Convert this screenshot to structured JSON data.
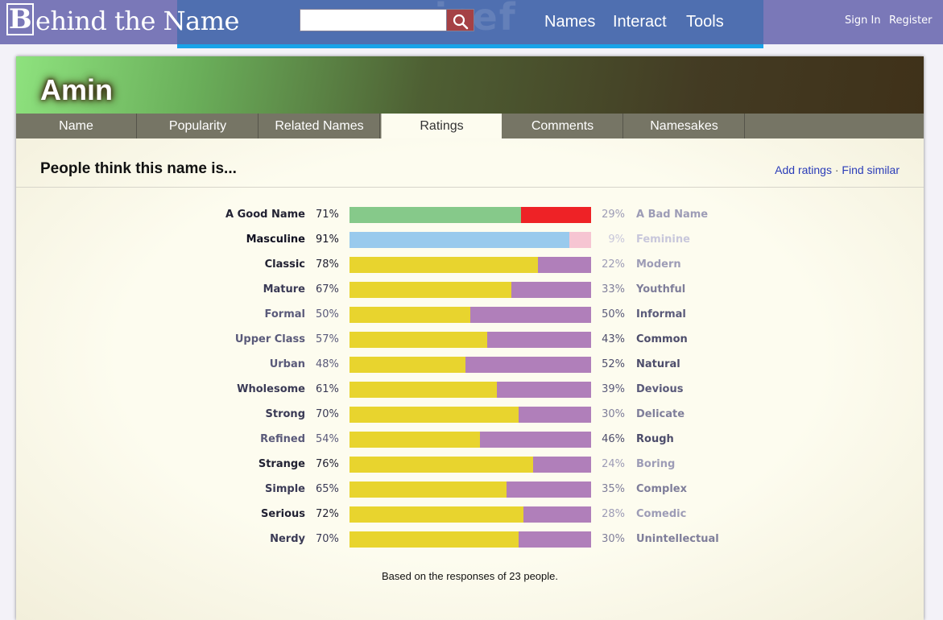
{
  "header": {
    "logo_text": "Behind the Name",
    "logo_initial": "B",
    "logo_rest": "ehind the Name",
    "watermark": "unicef",
    "search": {
      "value": "",
      "placeholder": ""
    },
    "nav": [
      "Names",
      "Interact",
      "Tools"
    ],
    "user": {
      "sign_in": "Sign In",
      "register": "Register"
    },
    "colors": {
      "bar": "#7a78b8",
      "center": "#4f6fb0",
      "strip": "#1aa3e8",
      "search_button": "#a54145"
    },
    "icons": {
      "search": "search-icon"
    }
  },
  "name": {
    "title": "Amin",
    "tabs": [
      "Name",
      "Popularity",
      "Related Names",
      "Ratings",
      "Comments",
      "Namesakes"
    ],
    "active_tab": "Ratings"
  },
  "ratings": {
    "heading": "People think this name is...",
    "links": {
      "add": "Add ratings",
      "separator": "·",
      "similar": "Find similar"
    },
    "footnote": "Based on the responses of 23 people.",
    "rows": [
      {
        "left": "A Good Name",
        "left_pct": 71,
        "right": "A Bad Name",
        "right_pct": 29,
        "left_color": "#86c98a",
        "right_color": "#ee2226",
        "left_text_color": "#222233",
        "right_text_color": "#9d9cb6"
      },
      {
        "left": "Masculine",
        "left_pct": 91,
        "right": "Feminine",
        "right_pct": 9,
        "left_color": "#99caed",
        "right_color": "#f6c5d2",
        "left_text_color": "#111122",
        "right_text_color": "#c8c7db"
      },
      {
        "left": "Classic",
        "left_pct": 78,
        "right": "Modern",
        "right_pct": 22,
        "left_color": "#e8d42e",
        "right_color": "#b07fba",
        "left_text_color": "#222233",
        "right_text_color": "#9d9cb6"
      },
      {
        "left": "Mature",
        "left_pct": 67,
        "right": "Youthful",
        "right_pct": 33,
        "left_color": "#e8d42e",
        "right_color": "#b07fba",
        "left_text_color": "#3a3a55",
        "right_text_color": "#7f7e9a"
      },
      {
        "left": "Formal",
        "left_pct": 50,
        "right": "Informal",
        "right_pct": 50,
        "left_color": "#e8d42e",
        "right_color": "#b07fba",
        "left_text_color": "#5a5a7a",
        "right_text_color": "#5a5a7a"
      },
      {
        "left": "Upper Class",
        "left_pct": 57,
        "right": "Common",
        "right_pct": 43,
        "left_color": "#e8d42e",
        "right_color": "#b07fba",
        "left_text_color": "#5a5a7a",
        "right_text_color": "#4d4d6b"
      },
      {
        "left": "Urban",
        "left_pct": 48,
        "right": "Natural",
        "right_pct": 52,
        "left_color": "#e8d42e",
        "right_color": "#b07fba",
        "left_text_color": "#5a5a7a",
        "right_text_color": "#4d4d6b"
      },
      {
        "left": "Wholesome",
        "left_pct": 61,
        "right": "Devious",
        "right_pct": 39,
        "left_color": "#e8d42e",
        "right_color": "#b07fba",
        "left_text_color": "#3a3a55",
        "right_text_color": "#5a5a7a"
      },
      {
        "left": "Strong",
        "left_pct": 70,
        "right": "Delicate",
        "right_pct": 30,
        "left_color": "#e8d42e",
        "right_color": "#b07fba",
        "left_text_color": "#3a3a55",
        "right_text_color": "#7f7e9a"
      },
      {
        "left": "Refined",
        "left_pct": 54,
        "right": "Rough",
        "right_pct": 46,
        "left_color": "#e8d42e",
        "right_color": "#b07fba",
        "left_text_color": "#5a5a7a",
        "right_text_color": "#4d4d6b"
      },
      {
        "left": "Strange",
        "left_pct": 76,
        "right": "Boring",
        "right_pct": 24,
        "left_color": "#e8d42e",
        "right_color": "#b07fba",
        "left_text_color": "#222233",
        "right_text_color": "#9d9cb6"
      },
      {
        "left": "Simple",
        "left_pct": 65,
        "right": "Complex",
        "right_pct": 35,
        "left_color": "#e8d42e",
        "right_color": "#b07fba",
        "left_text_color": "#3a3a55",
        "right_text_color": "#7f7e9a"
      },
      {
        "left": "Serious",
        "left_pct": 72,
        "right": "Comedic",
        "right_pct": 28,
        "left_color": "#e8d42e",
        "right_color": "#b07fba",
        "left_text_color": "#222233",
        "right_text_color": "#9d9cb6"
      },
      {
        "left": "Nerdy",
        "left_pct": 70,
        "right": "Unintellectual",
        "right_pct": 30,
        "left_color": "#e8d42e",
        "right_color": "#b07fba",
        "left_text_color": "#3a3a55",
        "right_text_color": "#7f7e9a"
      }
    ]
  }
}
